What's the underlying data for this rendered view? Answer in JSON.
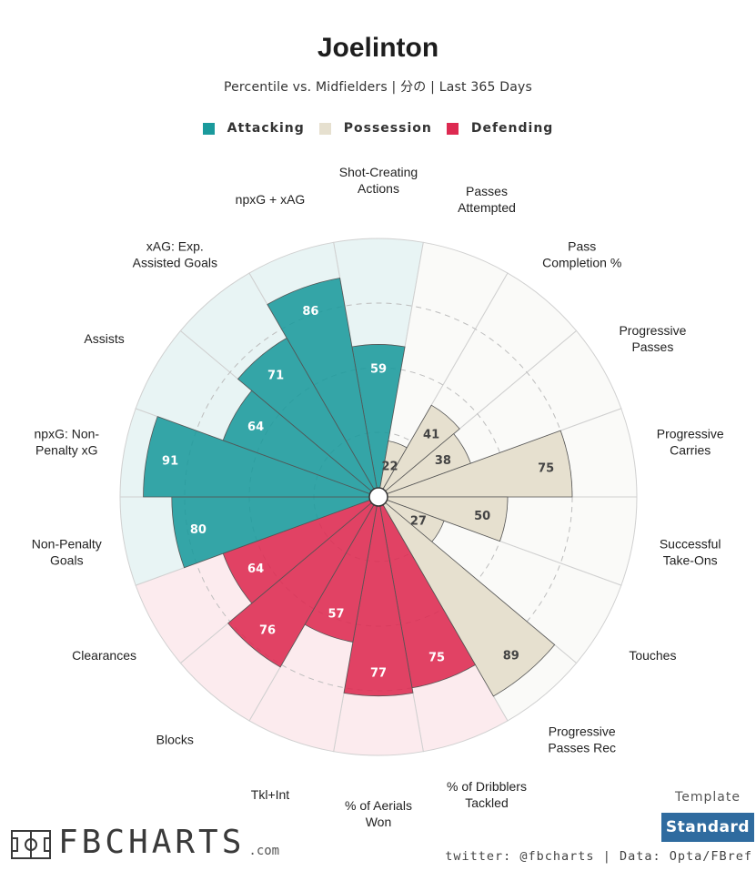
{
  "header": {
    "title": "Joelinton",
    "subtitle": "Percentile vs. Midfielders | 分の | Last 365 Days"
  },
  "legend": [
    {
      "label": "Attacking",
      "color": "#1a9a9c"
    },
    {
      "label": "Possession",
      "color": "#e6e0cf"
    },
    {
      "label": "Defending",
      "color": "#dd2a51"
    }
  ],
  "chart_data": {
    "type": "polar-bar",
    "title": "Joelinton",
    "rlim": [
      0,
      100
    ],
    "gridlines": [
      25,
      50,
      75
    ],
    "categories": [
      {
        "label": "Shot-Creating Actions",
        "value": 59,
        "group": "Attacking"
      },
      {
        "label": "Passes Attempted",
        "value": 22,
        "group": "Possession"
      },
      {
        "label": "Pass Completion %",
        "value": 41,
        "group": "Possession"
      },
      {
        "label": "Progressive Passes",
        "value": 38,
        "group": "Possession"
      },
      {
        "label": "Progressive Carries",
        "value": 75,
        "group": "Possession"
      },
      {
        "label": "Successful Take-Ons",
        "value": 50,
        "group": "Possession"
      },
      {
        "label": "Touches",
        "value": 27,
        "group": "Possession"
      },
      {
        "label": "Progressive Passes Rec",
        "value": 89,
        "group": "Possession"
      },
      {
        "label": "% of Dribblers Tackled",
        "value": 75,
        "group": "Defending"
      },
      {
        "label": "% of Aerials Won",
        "value": 77,
        "group": "Defending"
      },
      {
        "label": "Tkl+Int",
        "value": 57,
        "group": "Defending"
      },
      {
        "label": "Blocks",
        "value": 76,
        "group": "Defending"
      },
      {
        "label": "Clearances",
        "value": 64,
        "group": "Defending"
      },
      {
        "label": "Non-Penalty Goals",
        "value": 80,
        "group": "Attacking"
      },
      {
        "label": "npxG: Non-Penalty xG",
        "value": 91,
        "group": "Attacking"
      },
      {
        "label": "Assists",
        "value": 64,
        "group": "Attacking"
      },
      {
        "label": "xAG: Exp. Assisted Goals",
        "value": 71,
        "group": "Attacking"
      },
      {
        "label": "npxG + xAG",
        "value": 86,
        "group": "Attacking"
      }
    ],
    "label_lines": [
      [
        "Shot-Creating",
        "Actions"
      ],
      [
        "Passes",
        "Attempted"
      ],
      [
        "Pass",
        "Completion %"
      ],
      [
        "Progressive",
        "Passes"
      ],
      [
        "Progressive",
        "Carries"
      ],
      [
        "Successful",
        "Take-Ons"
      ],
      [
        "Touches"
      ],
      [
        "Progressive",
        "Passes Rec"
      ],
      [
        "% of Dribblers",
        "Tackled"
      ],
      [
        "% of Aerials",
        "Won"
      ],
      [
        "Tkl+Int"
      ],
      [
        "Blocks"
      ],
      [
        "Clearances"
      ],
      [
        "Non-Penalty",
        "Goals"
      ],
      [
        "npxG: Non-",
        "Penalty xG"
      ],
      [
        "Assists"
      ],
      [
        "xAG: Exp.",
        "Assisted Goals"
      ],
      [
        "npxG + xAG"
      ]
    ],
    "colors": {
      "Attacking": {
        "fill": "#1a9a9c",
        "bg": "#e8f4f4",
        "text": "#ffffff"
      },
      "Possession": {
        "fill": "#e6e0cf",
        "bg": "#fafaf8",
        "text": "#444444"
      },
      "Defending": {
        "fill": "#dd2a51",
        "bg": "#fcebee",
        "text": "#ffffff"
      }
    }
  },
  "branding": {
    "logo": "FBCHARTS",
    "logo_domain": ".com",
    "template_label": "Template",
    "template_value": "Standard",
    "footer": "twitter: @fbcharts | Data: Opta/FBref"
  }
}
